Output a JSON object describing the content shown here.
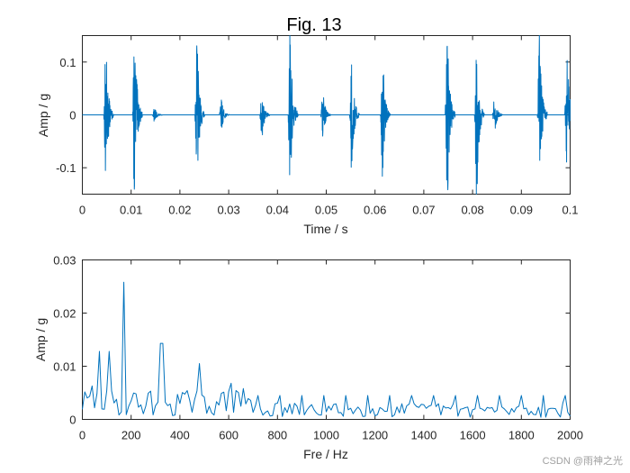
{
  "chart_data": [
    {
      "type": "line",
      "title": "Fig. 13",
      "xlabel": "Time / s",
      "ylabel": "Amp / g",
      "xlim": [
        0,
        0.1
      ],
      "ylim": [
        -0.15,
        0.15
      ],
      "xticks": [
        0,
        0.01,
        0.02,
        0.03,
        0.04,
        0.05,
        0.06,
        0.07,
        0.08,
        0.09,
        0.1
      ],
      "xtick_labels": [
        "0",
        "0.01",
        "0.02",
        "0.03",
        "0.04",
        "0.05",
        "0.06",
        "0.07",
        "0.08",
        "0.09",
        "0.1"
      ],
      "yticks": [
        -0.1,
        0,
        0.1
      ],
      "ytick_labels": [
        "-0.1",
        "0",
        "0.1"
      ],
      "grid": false,
      "color": "#0072BD",
      "series": [
        {
          "bursts": [
            {
              "t": 0.0048,
              "amp": 0.12
            },
            {
              "t": 0.0107,
              "amp": 0.15
            },
            {
              "t": 0.0148,
              "amp": 0.012
            },
            {
              "t": 0.0235,
              "amp": 0.13
            },
            {
              "t": 0.0285,
              "amp": 0.025
            },
            {
              "t": 0.0368,
              "amp": 0.04
            },
            {
              "t": 0.0426,
              "amp": 0.15
            },
            {
              "t": 0.0493,
              "amp": 0.04
            },
            {
              "t": 0.0552,
              "amp": 0.1
            },
            {
              "t": 0.0615,
              "amp": 0.11
            },
            {
              "t": 0.0748,
              "amp": 0.15
            },
            {
              "t": 0.0808,
              "amp": 0.15
            },
            {
              "t": 0.0845,
              "amp": 0.03
            },
            {
              "t": 0.0937,
              "amp": 0.15
            },
            {
              "t": 0.0993,
              "amp": 0.12
            }
          ]
        }
      ]
    },
    {
      "type": "line",
      "xlabel": "Fre / Hz",
      "ylabel": "Amp / g",
      "xlim": [
        0,
        2000
      ],
      "ylim": [
        0,
        0.03
      ],
      "xticks": [
        0,
        200,
        400,
        600,
        800,
        1000,
        1200,
        1400,
        1600,
        1800,
        2000
      ],
      "xtick_labels": [
        "0",
        "200",
        "400",
        "600",
        "800",
        "1000",
        "1200",
        "1400",
        "1600",
        "1800",
        "2000"
      ],
      "yticks": [
        0,
        0.01,
        0.02,
        0.03
      ],
      "ytick_labels": [
        "0",
        "0.01",
        "0.02",
        "0.03"
      ],
      "grid": false,
      "color": "#0072BD",
      "series": [
        {
          "peaks": [
            {
              "f": 40,
              "amp": 0.0063
            },
            {
              "f": 70,
              "amp": 0.0128
            },
            {
              "f": 110,
              "amp": 0.0128
            },
            {
              "f": 170,
              "amp": 0.0258
            },
            {
              "f": 325,
              "amp": 0.0143
            },
            {
              "f": 480,
              "amp": 0.0105
            },
            {
              "f": 610,
              "amp": 0.0068
            },
            {
              "f": 660,
              "amp": 0.0058
            }
          ]
        }
      ]
    }
  ],
  "watermark": "CSDN @雨神之光"
}
